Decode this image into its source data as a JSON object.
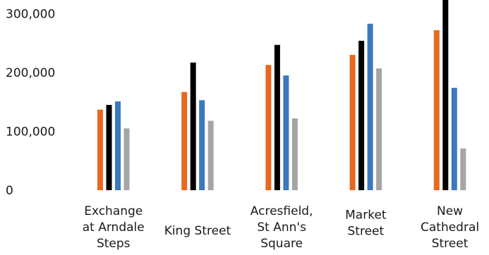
{
  "chart_data": {
    "type": "bar",
    "categories": [
      [
        "Exchange",
        "at Arndale",
        "Steps"
      ],
      [
        "King Street"
      ],
      [
        "Acresfield,",
        "St Ann's",
        "Square"
      ],
      [
        "Market",
        "Street"
      ],
      [
        "New",
        "Cathedral",
        "Street"
      ]
    ],
    "series": [
      {
        "color": "#E8681F",
        "values": [
          137000,
          167000,
          213000,
          230000,
          272000
        ]
      },
      {
        "color": "#000000",
        "values": [
          145000,
          217000,
          247000,
          254000,
          335000
        ]
      },
      {
        "color": "#3B78C0",
        "values": [
          151000,
          153000,
          195000,
          283000,
          174000
        ]
      },
      {
        "color": "#A5A5A5",
        "values": [
          105000,
          118000,
          122000,
          207000,
          71000
        ]
      }
    ],
    "yticks": [
      "0",
      "100,000",
      "200,000",
      "300,000"
    ],
    "ytick_values": [
      0,
      100000,
      200000,
      300000
    ],
    "ylim": [
      0,
      320000
    ],
    "xlabel": "",
    "ylabel": "",
    "title": "",
    "grid": false,
    "legend": "none"
  }
}
